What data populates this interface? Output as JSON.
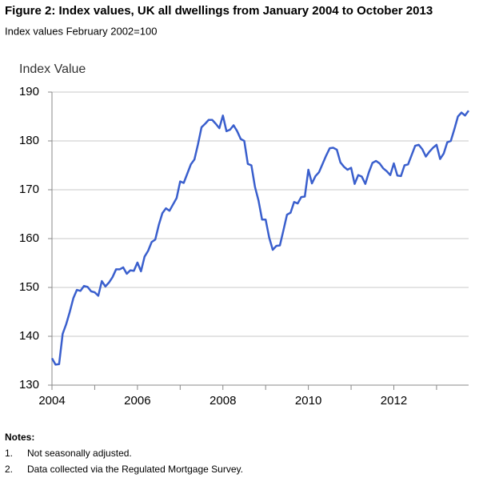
{
  "chart_data": {
    "type": "line",
    "title": "Figure 2: Index values, UK all dwellings from January 2004 to October 2013",
    "subtitle": "Index values February 2002=100",
    "y_label": "Index Value",
    "color": "#3a5fcd",
    "x": [
      "2004-01",
      "2004-02",
      "2004-03",
      "2004-04",
      "2004-05",
      "2004-06",
      "2004-07",
      "2004-08",
      "2004-09",
      "2004-10",
      "2004-11",
      "2004-12",
      "2005-01",
      "2005-02",
      "2005-03",
      "2005-04",
      "2005-05",
      "2005-06",
      "2005-07",
      "2005-08",
      "2005-09",
      "2005-10",
      "2005-11",
      "2005-12",
      "2006-01",
      "2006-02",
      "2006-03",
      "2006-04",
      "2006-05",
      "2006-06",
      "2006-07",
      "2006-08",
      "2006-09",
      "2006-10",
      "2006-11",
      "2006-12",
      "2007-01",
      "2007-02",
      "2007-03",
      "2007-04",
      "2007-05",
      "2007-06",
      "2007-07",
      "2007-08",
      "2007-09",
      "2007-10",
      "2007-11",
      "2007-12",
      "2008-01",
      "2008-02",
      "2008-03",
      "2008-04",
      "2008-05",
      "2008-06",
      "2008-07",
      "2008-08",
      "2008-09",
      "2008-10",
      "2008-11",
      "2008-12",
      "2009-01",
      "2009-02",
      "2009-03",
      "2009-04",
      "2009-05",
      "2009-06",
      "2009-07",
      "2009-08",
      "2009-09",
      "2009-10",
      "2009-11",
      "2009-12",
      "2010-01",
      "2010-02",
      "2010-03",
      "2010-04",
      "2010-05",
      "2010-06",
      "2010-07",
      "2010-08",
      "2010-09",
      "2010-10",
      "2010-11",
      "2010-12",
      "2011-01",
      "2011-02",
      "2011-03",
      "2011-04",
      "2011-05",
      "2011-06",
      "2011-07",
      "2011-08",
      "2011-09",
      "2011-10",
      "2011-11",
      "2011-12",
      "2012-01",
      "2012-02",
      "2012-03",
      "2012-04",
      "2012-05",
      "2012-06",
      "2012-07",
      "2012-08",
      "2012-09",
      "2012-10",
      "2012-11",
      "2012-12",
      "2013-01",
      "2013-02",
      "2013-03",
      "2013-04",
      "2013-05",
      "2013-06",
      "2013-07",
      "2013-08",
      "2013-09",
      "2013-10"
    ],
    "values": [
      135.5,
      134.2,
      134.3,
      140.5,
      142.5,
      145,
      147.8,
      149.5,
      149.3,
      150.3,
      150.1,
      149.2,
      149,
      148.3,
      151.3,
      150.2,
      151,
      152.1,
      153.7,
      153.7,
      154.1,
      152.8,
      153.5,
      153.4,
      155.1,
      153.3,
      156.3,
      157.5,
      159.3,
      159.8,
      162.8,
      165.2,
      166.2,
      165.7,
      167,
      168.3,
      171.7,
      171.4,
      173.3,
      175.2,
      176.2,
      179.3,
      182.8,
      183.5,
      184.3,
      184.3,
      183.5,
      182.6,
      185.2,
      182,
      182.3,
      183.2,
      182,
      180.4,
      180,
      175.3,
      175,
      170.6,
      167.8,
      163.9,
      163.9,
      160.2,
      157.7,
      158.5,
      158.6,
      161.7,
      164.9,
      165.3,
      167.5,
      167.2,
      168.5,
      168.6,
      174.1,
      171.3,
      172.8,
      173.6,
      175.3,
      177,
      178.5,
      178.6,
      178.2,
      175.6,
      174.7,
      174.1,
      174.5,
      171.2,
      173,
      172.7,
      171.2,
      173.6,
      175.5,
      175.9,
      175.4,
      174.4,
      173.8,
      173,
      175.4,
      172.9,
      172.8,
      175,
      175.2,
      177.1,
      179,
      179.2,
      178.3,
      176.8,
      177.8,
      178.6,
      179.2,
      176.3,
      177.4,
      179.7,
      180,
      182.4,
      185,
      185.8,
      185.2,
      186.2
    ],
    "xlim": [
      2004,
      2013.75
    ],
    "xticks": [
      2004,
      2006,
      2008,
      2010,
      2012
    ],
    "xminor": [
      2005,
      2007,
      2009,
      2011,
      2013
    ],
    "ylim": [
      130,
      190
    ],
    "yticks": [
      130,
      140,
      150,
      160,
      170,
      180,
      190
    ],
    "grid": true
  },
  "notes": {
    "title": "Notes:",
    "items": [
      {
        "number": "1.",
        "text": "Not seasonally adjusted."
      },
      {
        "number": "2.",
        "text": "Data collected via the Regulated Mortgage Survey."
      }
    ]
  }
}
